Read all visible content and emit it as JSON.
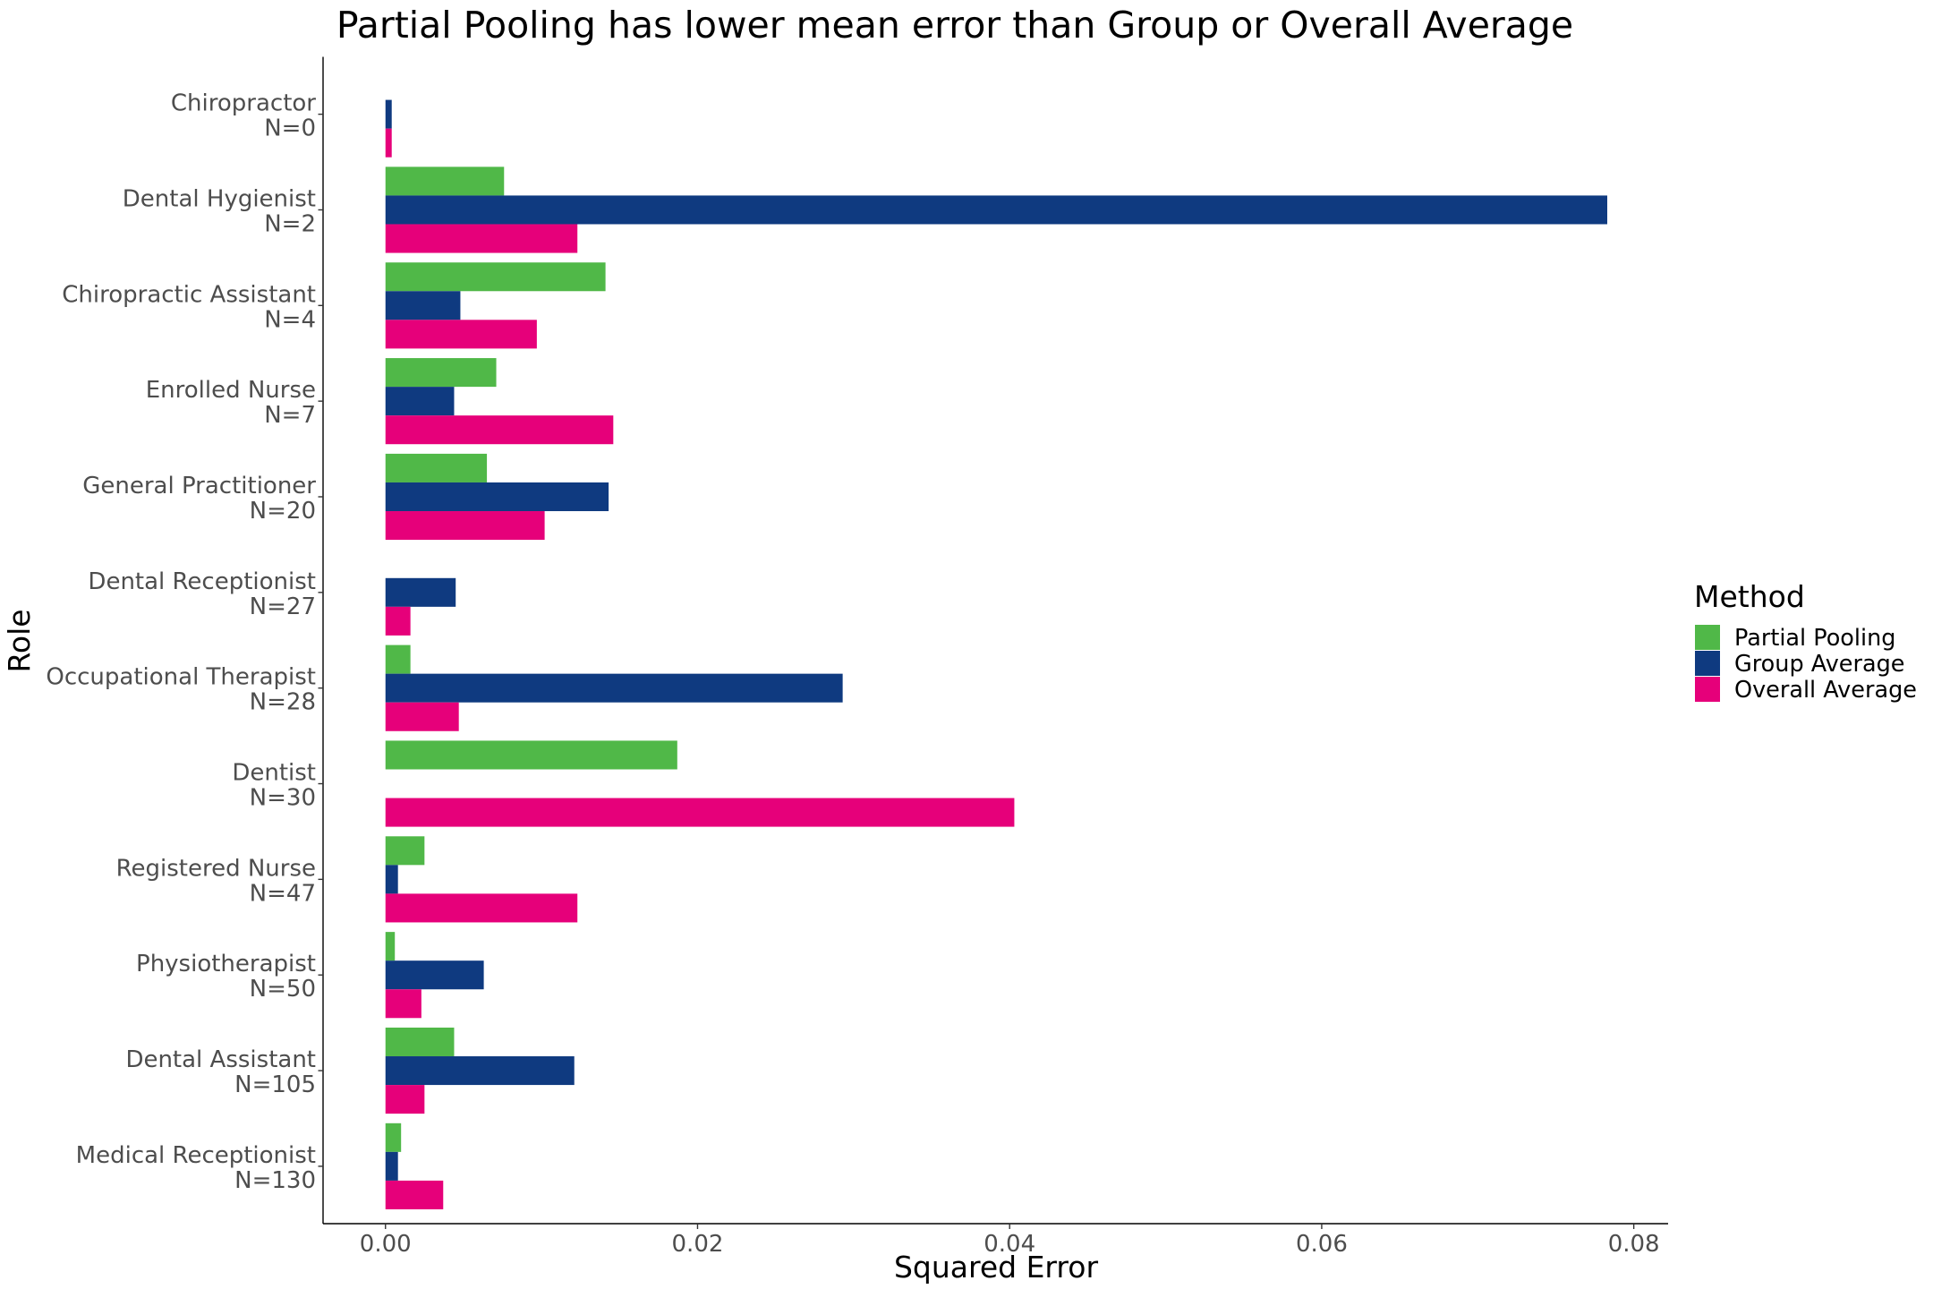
{
  "chart_data": {
    "type": "bar",
    "orientation": "horizontal",
    "title": "Partial Pooling has lower mean error than Group or Overall Average",
    "xlabel": "Squared Error",
    "ylabel": "Role",
    "xlim": [
      -0.004,
      0.0822
    ],
    "xticks": {
      "values": [
        0,
        0.02,
        0.04,
        0.06,
        0.08
      ],
      "labels": [
        "0.00",
        "0.02",
        "0.04",
        "0.06",
        "0.08"
      ]
    },
    "grid": false,
    "legend": {
      "title": "Method",
      "position": "right"
    },
    "categories": [
      {
        "label": "Chiropractor",
        "sublabel": "N=0"
      },
      {
        "label": "Dental Hygienist",
        "sublabel": "N=2"
      },
      {
        "label": "Chiropractic Assistant",
        "sublabel": "N=4"
      },
      {
        "label": "Enrolled Nurse",
        "sublabel": "N=7"
      },
      {
        "label": "General Practitioner",
        "sublabel": "N=20"
      },
      {
        "label": "Dental Receptionist",
        "sublabel": "N=27"
      },
      {
        "label": "Occupational Therapist",
        "sublabel": "N=28"
      },
      {
        "label": "Dentist",
        "sublabel": "N=30"
      },
      {
        "label": "Registered Nurse",
        "sublabel": "N=47"
      },
      {
        "label": "Physiotherapist",
        "sublabel": "N=50"
      },
      {
        "label": "Dental Assistant",
        "sublabel": "N=105"
      },
      {
        "label": "Medical Receptionist",
        "sublabel": "N=130"
      }
    ],
    "series": [
      {
        "name": "Partial Pooling",
        "color": "#50b848",
        "values": [
          null,
          0.0076,
          0.0141,
          0.0071,
          0.0065,
          null,
          0.0016,
          0.0187,
          0.0025,
          0.0006,
          0.0044,
          0.001
        ]
      },
      {
        "name": "Group Average",
        "color": "#0f3a80",
        "values": [
          0.0004,
          0.0783,
          0.0048,
          0.0044,
          0.0143,
          0.0045,
          0.0293,
          null,
          0.0008,
          0.0063,
          0.0121,
          0.0008
        ]
      },
      {
        "name": "Overall Average",
        "color": "#e6007a",
        "values": [
          0.0004,
          0.0123,
          0.0097,
          0.0146,
          0.0102,
          0.0016,
          0.0047,
          0.0403,
          0.0123,
          0.0023,
          0.0025,
          0.0037
        ]
      }
    ]
  }
}
